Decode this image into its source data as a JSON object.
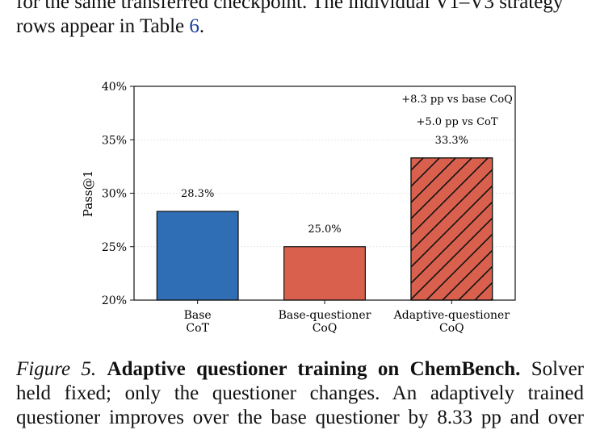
{
  "text_above": {
    "line1": "for the same transferred checkpoint. The individual V1–V3 strategy",
    "line2_pre": "rows appear in Table ",
    "line2_ref": "6",
    "line2_post": "."
  },
  "chart_data": {
    "type": "bar",
    "categories": [
      [
        "Base",
        "CoT"
      ],
      [
        "Base-questioner",
        "CoQ"
      ],
      [
        "Adaptive-questioner",
        "CoQ"
      ]
    ],
    "values": [
      28.3,
      25.0,
      33.3
    ],
    "data_labels": [
      "28.3%",
      "25.0%",
      "33.3%"
    ],
    "colors": [
      "#2f6db5",
      "#d9604d",
      "#d9604d"
    ],
    "hatched": [
      false,
      false,
      true
    ],
    "ylabel": "Pass@1",
    "ylim": [
      20,
      40
    ],
    "yticks": [
      20,
      25,
      30,
      35,
      40
    ],
    "ytick_labels": [
      "20%",
      "25%",
      "30%",
      "35%",
      "40%"
    ],
    "grid": true,
    "annotations": [
      "+8.3 pp vs base CoQ",
      "+5.0 pp vs CoT"
    ]
  },
  "caption": {
    "fig_label": "Figure 5.",
    "title": "Adaptive questioner training on ChemBench.",
    "line1_tail": "Solver",
    "line2": "held fixed; only the questioner changes. An adaptively trained",
    "line3": "questioner improves over the base questioner by 8.33 pp and over"
  }
}
